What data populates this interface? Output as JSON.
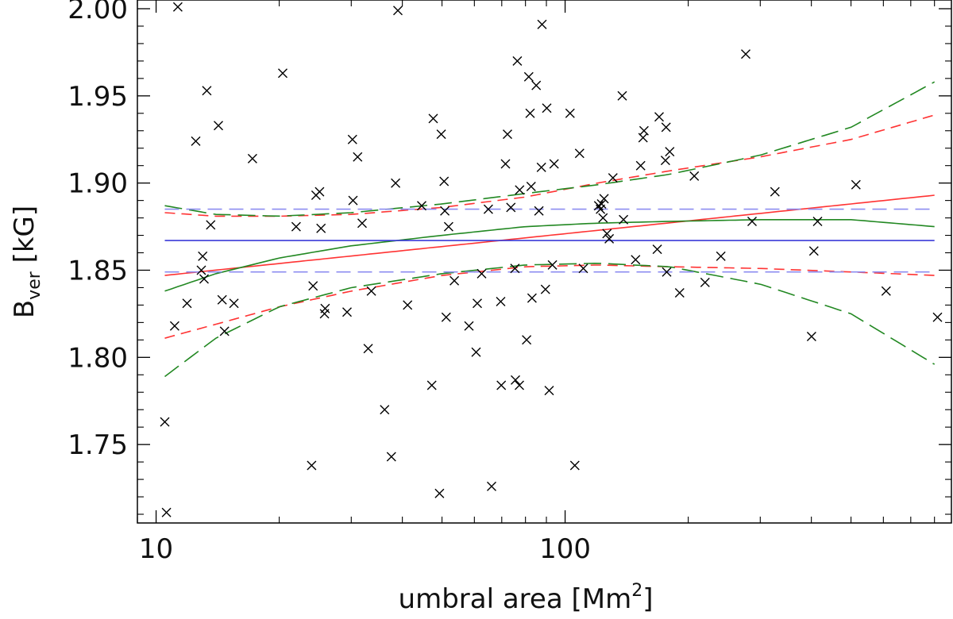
{
  "chart_data": {
    "type": "scatter",
    "xscale": "log",
    "xlim": [
      9,
      880
    ],
    "ylim": [
      1.705,
      2.005
    ],
    "xlabel": {
      "main": "umbral area [Mm",
      "sup": "2",
      "close": "]"
    },
    "ylabel": {
      "main": "B",
      "sub": "ver",
      "unit": " [kG]"
    },
    "x_ticks": [
      {
        "value": 10,
        "label": "10"
      },
      {
        "value": 100,
        "label": "100"
      }
    ],
    "y_ticks": [
      {
        "value": 1.75,
        "label": "1.75"
      },
      {
        "value": 1.8,
        "label": "1.80"
      },
      {
        "value": 1.85,
        "label": "1.85"
      },
      {
        "value": 1.9,
        "label": "1.90"
      },
      {
        "value": 1.95,
        "label": "1.95"
      },
      {
        "value": 2.0,
        "label": "2.00"
      }
    ],
    "marker_color": "#000000",
    "points": [
      [
        10.6,
        1.711
      ],
      [
        10.5,
        1.763
      ],
      [
        11.1,
        1.818
      ],
      [
        11.3,
        2.001
      ],
      [
        11.9,
        1.831
      ],
      [
        12.5,
        1.924
      ],
      [
        12.9,
        1.85
      ],
      [
        13.0,
        1.858
      ],
      [
        13.1,
        1.845
      ],
      [
        13.3,
        1.953
      ],
      [
        13.6,
        1.876
      ],
      [
        14.2,
        1.933
      ],
      [
        14.5,
        1.833
      ],
      [
        14.7,
        1.815
      ],
      [
        15.5,
        1.831
      ],
      [
        17.2,
        1.914
      ],
      [
        20.4,
        1.963
      ],
      [
        22.0,
        1.875
      ],
      [
        24.0,
        1.738
      ],
      [
        24.2,
        1.841
      ],
      [
        24.6,
        1.893
      ],
      [
        25.1,
        1.895
      ],
      [
        25.3,
        1.874
      ],
      [
        25.8,
        1.825
      ],
      [
        25.9,
        1.828
      ],
      [
        29.3,
        1.826
      ],
      [
        30.2,
        1.925
      ],
      [
        30.3,
        1.89
      ],
      [
        31.1,
        1.915
      ],
      [
        31.9,
        1.877
      ],
      [
        33.0,
        1.805
      ],
      [
        33.6,
        1.838
      ],
      [
        36.2,
        1.77
      ],
      [
        37.6,
        1.743
      ],
      [
        38.5,
        1.9
      ],
      [
        39.0,
        1.999
      ],
      [
        41.2,
        1.83
      ],
      [
        44.6,
        1.887
      ],
      [
        47.2,
        1.784
      ],
      [
        47.6,
        1.937
      ],
      [
        49.3,
        1.722
      ],
      [
        49.8,
        1.928
      ],
      [
        50.6,
        1.901
      ],
      [
        50.8,
        1.884
      ],
      [
        51.2,
        1.823
      ],
      [
        51.9,
        1.875
      ],
      [
        53.6,
        1.844
      ],
      [
        58.2,
        1.818
      ],
      [
        60.6,
        1.803
      ],
      [
        61.0,
        1.831
      ],
      [
        62.5,
        1.848
      ],
      [
        64.9,
        1.885
      ],
      [
        66.1,
        1.726
      ],
      [
        69.6,
        1.832
      ],
      [
        69.8,
        1.784
      ],
      [
        71.5,
        1.911
      ],
      [
        72.3,
        1.928
      ],
      [
        73.7,
        1.886
      ],
      [
        75.4,
        1.851
      ],
      [
        75.6,
        1.787
      ],
      [
        76.4,
        1.97
      ],
      [
        77.3,
        1.784
      ],
      [
        77.4,
        1.896
      ],
      [
        80.5,
        1.81
      ],
      [
        81.5,
        1.961
      ],
      [
        82.1,
        1.94
      ],
      [
        82.6,
        1.898
      ],
      [
        83.0,
        1.834
      ],
      [
        85.0,
        1.956
      ],
      [
        86.3,
        1.884
      ],
      [
        87.5,
        1.909
      ],
      [
        87.8,
        1.991
      ],
      [
        89.5,
        1.839
      ],
      [
        90.2,
        1.943
      ],
      [
        91.4,
        1.781
      ],
      [
        93.1,
        1.853
      ],
      [
        94.0,
        1.911
      ],
      [
        102.8,
        1.94
      ],
      [
        105.6,
        1.738
      ],
      [
        108.5,
        1.917
      ],
      [
        110.8,
        1.851
      ],
      [
        120.8,
        1.887
      ],
      [
        122.0,
        1.885
      ],
      [
        122.8,
        1.888
      ],
      [
        123.8,
        1.88
      ],
      [
        124.5,
        1.891
      ],
      [
        126.6,
        1.871
      ],
      [
        128.2,
        1.868
      ],
      [
        130.9,
        1.903
      ],
      [
        137.9,
        1.95
      ],
      [
        138.9,
        1.879
      ],
      [
        148.7,
        1.856
      ],
      [
        153.0,
        1.91
      ],
      [
        155.1,
        1.926
      ],
      [
        155.9,
        1.93
      ],
      [
        168.0,
        1.862
      ],
      [
        169.8,
        1.938
      ],
      [
        175.9,
        1.913
      ],
      [
        176.5,
        1.932
      ],
      [
        177.2,
        1.849
      ],
      [
        180.2,
        1.918
      ],
      [
        190.6,
        1.837
      ],
      [
        206.9,
        1.904
      ],
      [
        219.9,
        1.843
      ],
      [
        240.3,
        1.858
      ],
      [
        276.4,
        1.974
      ],
      [
        286.5,
        1.878
      ],
      [
        325.9,
        1.895
      ],
      [
        400.5,
        1.812
      ],
      [
        405.7,
        1.861
      ],
      [
        414.3,
        1.878
      ],
      [
        514.1,
        1.899
      ],
      [
        609.4,
        1.838
      ],
      [
        813.8,
        1.823
      ]
    ],
    "series": [
      {
        "kind": "linear-fit",
        "color": "#ff3333",
        "dash": "",
        "x": [
          10.5,
          800
        ],
        "y": [
          1.847,
          1.893
        ]
      },
      {
        "kind": "linear-fit-bound",
        "color": "#ff3333",
        "dash": "13 8",
        "x": [
          10.5,
          14,
          20,
          30,
          50,
          80,
          120,
          180,
          300,
          500,
          800
        ],
        "y": [
          1.883,
          1.881,
          1.881,
          1.882,
          1.886,
          1.892,
          1.9,
          1.907,
          1.915,
          1.925,
          1.939
        ]
      },
      {
        "kind": "linear-fit-bound",
        "color": "#ff3333",
        "dash": "13 8",
        "x": [
          10.5,
          14,
          20,
          30,
          50,
          80,
          120,
          180,
          300,
          500,
          800
        ],
        "y": [
          1.811,
          1.819,
          1.829,
          1.838,
          1.847,
          1.852,
          1.853,
          1.852,
          1.851,
          1.849,
          1.847
        ]
      },
      {
        "kind": "quadratic-fit",
        "color": "#228822",
        "dash": "",
        "x": [
          10.5,
          14,
          20,
          30,
          50,
          80,
          120,
          180,
          300,
          500,
          800
        ],
        "y": [
          1.838,
          1.848,
          1.857,
          1.864,
          1.87,
          1.875,
          1.877,
          1.878,
          1.879,
          1.879,
          1.875
        ]
      },
      {
        "kind": "quadratic-fit-bound",
        "color": "#228822",
        "dash": "22 9",
        "x": [
          10.5,
          14,
          20,
          30,
          50,
          80,
          120,
          180,
          300,
          500,
          800
        ],
        "y": [
          1.887,
          1.882,
          1.881,
          1.883,
          1.888,
          1.894,
          1.899,
          1.905,
          1.916,
          1.932,
          1.958
        ]
      },
      {
        "kind": "quadratic-fit-bound",
        "color": "#228822",
        "dash": "22 9",
        "x": [
          10.5,
          14,
          20,
          30,
          50,
          80,
          120,
          180,
          300,
          500,
          800
        ],
        "y": [
          1.789,
          1.811,
          1.829,
          1.84,
          1.848,
          1.853,
          1.854,
          1.852,
          1.842,
          1.825,
          1.796
        ]
      },
      {
        "kind": "mean",
        "color": "#3a3ad8",
        "dash": "",
        "x": [
          10.5,
          800
        ],
        "y": [
          1.867,
          1.867
        ]
      },
      {
        "kind": "mean-bound",
        "color": "#8c8cf0",
        "dash": "18 9",
        "x": [
          10.5,
          800
        ],
        "y": [
          1.885,
          1.885
        ]
      },
      {
        "kind": "mean-bound",
        "color": "#8c8cf0",
        "dash": "18 9",
        "x": [
          10.5,
          800
        ],
        "y": [
          1.849,
          1.849
        ]
      }
    ]
  }
}
